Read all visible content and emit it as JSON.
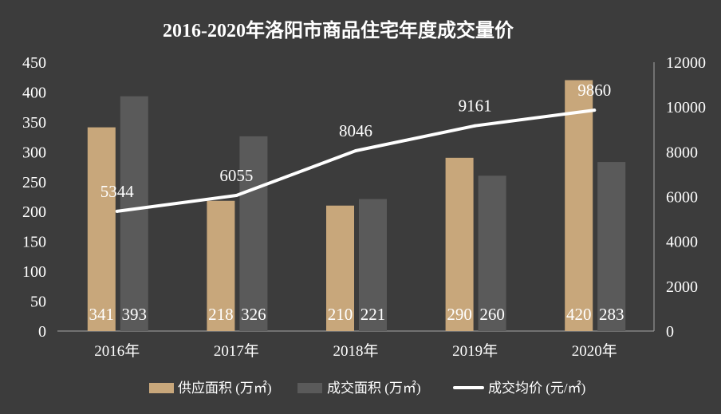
{
  "colors": {
    "background": "#3c3c3c",
    "axis_line": "#a6a6a6",
    "text": "#ffffff"
  },
  "chart_data": {
    "type": "bar",
    "title": "2016-2020年洛阳市商品住宅年度成交量价",
    "categories": [
      "2016年",
      "2017年",
      "2018年",
      "2019年",
      "2020年"
    ],
    "series": [
      {
        "name": "供应面积 (万㎡)",
        "type": "bar",
        "axis": "left",
        "color": "#c8a77b",
        "values": [
          341,
          218,
          210,
          290,
          420
        ]
      },
      {
        "name": "成交面积 (万㎡)",
        "type": "bar",
        "axis": "left",
        "color": "#5a5a5a",
        "values": [
          393,
          326,
          221,
          260,
          283
        ]
      },
      {
        "name": "成交均价 (元/㎡)",
        "type": "line",
        "axis": "right",
        "color": "#ffffff",
        "values": [
          5344,
          6055,
          8046,
          9161,
          9860
        ]
      }
    ],
    "y_left": {
      "ylim": [
        0,
        450
      ],
      "ticks": [
        0,
        50,
        100,
        150,
        200,
        250,
        300,
        350,
        400,
        450
      ]
    },
    "y_right": {
      "ylim": [
        0,
        12000
      ],
      "ticks": [
        0,
        2000,
        4000,
        6000,
        8000,
        10000,
        12000
      ]
    },
    "grid": false,
    "legend_position": "bottom",
    "data_labels": true
  }
}
